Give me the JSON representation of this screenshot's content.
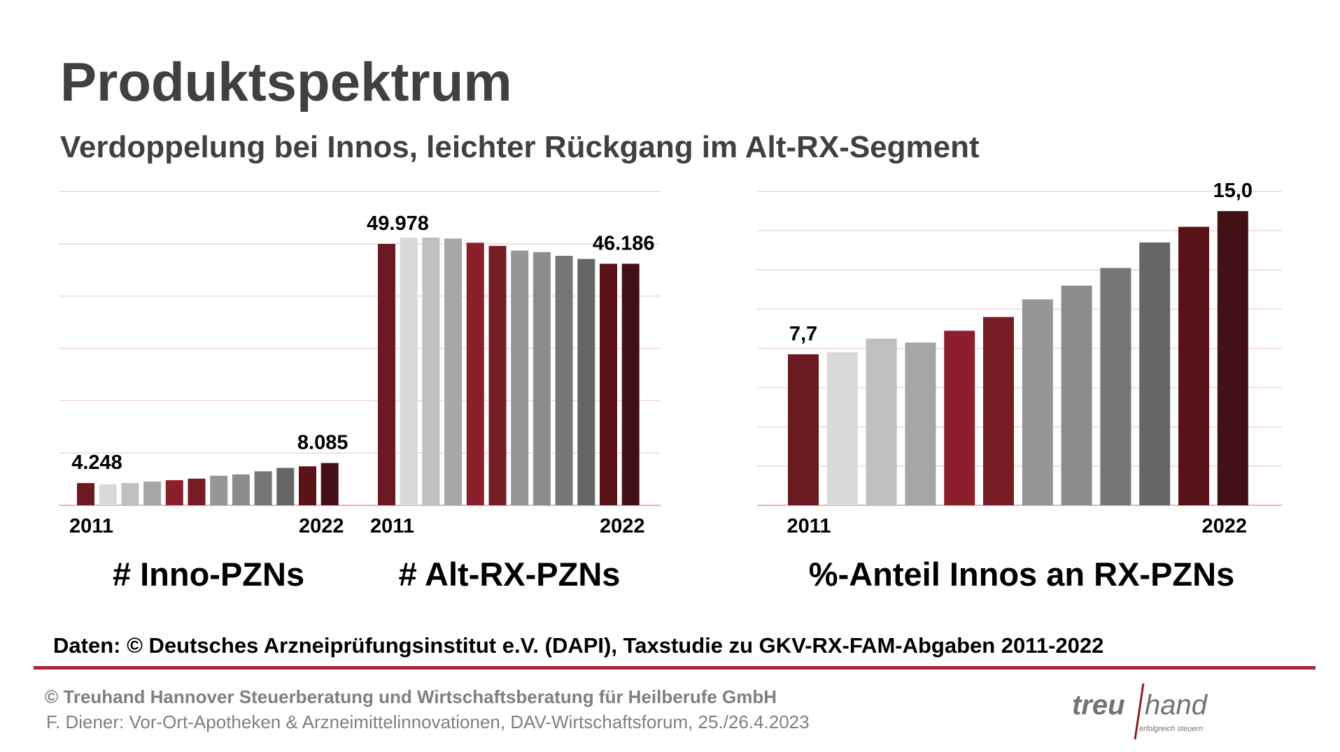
{
  "header": {
    "title": "Produktspektrum",
    "subtitle": "Verdoppelung bei Innos, leichter Rückgang im Alt-RX-Segment"
  },
  "colors": {
    "series_years": [
      "#6b1a22",
      "#d9d9d9",
      "#bfbfbf",
      "#a6a6a6",
      "#8b1f2c",
      "#751c25",
      "#969696",
      "#8c8c8c",
      "#767676",
      "#666666",
      "#5a1319",
      "#431015"
    ],
    "gridline": "#f2d4da",
    "axis": "#e6b3be",
    "footer_rule": "#a52a34",
    "logo_text": "#767171",
    "logo_slash": "#8b1f2c"
  },
  "chart_data": [
    {
      "type": "bar",
      "title": "# Inno-PZNs",
      "categories": [
        "2011",
        "2012",
        "2013",
        "2014",
        "2015",
        "2016",
        "2017",
        "2018",
        "2019",
        "2020",
        "2021",
        "2022"
      ],
      "tick_labels": [
        "2011",
        "2022"
      ],
      "values": [
        4248,
        4000,
        4250,
        4550,
        4800,
        5100,
        5650,
        5900,
        6500,
        7150,
        7450,
        8085
      ],
      "data_labels": [
        {
          "index": 0,
          "text": "4.248"
        },
        {
          "index": 11,
          "text": "8.085"
        }
      ],
      "ylim": [
        0,
        60000
      ],
      "grid": true,
      "shared_axis_with": "# Alt-RX-PZNs"
    },
    {
      "type": "bar",
      "title": "# Alt-RX-PZNs",
      "categories": [
        "2011",
        "2012",
        "2013",
        "2014",
        "2015",
        "2016",
        "2017",
        "2018",
        "2019",
        "2020",
        "2021",
        "2022"
      ],
      "tick_labels": [
        "2011",
        "2022"
      ],
      "values": [
        49978,
        51200,
        51200,
        51000,
        50200,
        49600,
        48700,
        48400,
        47700,
        47100,
        46186,
        46186
      ],
      "data_labels": [
        {
          "index": 0,
          "text": "49.978"
        },
        {
          "index": 11,
          "text": "46.186"
        }
      ],
      "ylim": [
        0,
        60000
      ],
      "grid": true
    },
    {
      "type": "bar",
      "title": "%-Anteil Innos an RX-PZNs",
      "categories": [
        "2011",
        "2012",
        "2013",
        "2014",
        "2015",
        "2016",
        "2017",
        "2018",
        "2019",
        "2020",
        "2021",
        "2022"
      ],
      "tick_labels": [
        "2011",
        "2022"
      ],
      "values": [
        7.7,
        7.8,
        8.5,
        8.3,
        8.9,
        9.6,
        10.5,
        11.2,
        12.1,
        13.4,
        14.2,
        15.0
      ],
      "data_labels": [
        {
          "index": 0,
          "text": "7,7"
        },
        {
          "index": 11,
          "text": "15,0"
        }
      ],
      "ylim": [
        0,
        16
      ],
      "grid": true
    }
  ],
  "footer": {
    "source": "Daten: © Deutsches Arzneiprüfungsinstitut e.V. (DAPI), Taxstudie zu GKV-RX-FAM-Abgaben 2011-2022",
    "copyright": "© Treuhand Hannover Steuerberatung und Wirtschaftsberatung für Heilberufe GmbH",
    "event": "F. Diener: Vor-Ort-Apotheken & Arzneimittelinnovationen, DAV-Wirtschaftsforum, 25./26.4.2023",
    "logo_word_left": "treu",
    "logo_word_right": "hand",
    "logo_tagline": "erfolgreich steuern"
  }
}
